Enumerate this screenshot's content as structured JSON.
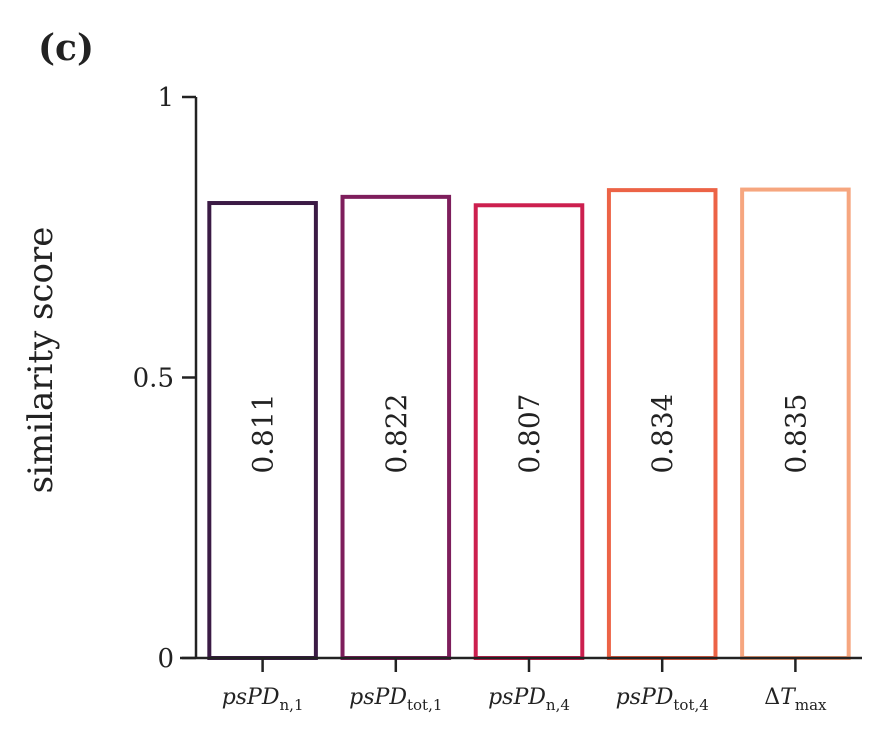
{
  "panel_label": "(c)",
  "chart_data": {
    "type": "bar",
    "title": "",
    "xlabel": "",
    "ylabel": "similarity score",
    "ylim": [
      0,
      1
    ],
    "yticks": [
      0,
      0.5,
      1
    ],
    "ytick_labels": [
      "0",
      "0.5",
      "1"
    ],
    "categories": [
      {
        "base": "psPD",
        "sub": "n,1"
      },
      {
        "base": "psPD",
        "sub": "tot,1"
      },
      {
        "base": "psPD",
        "sub": "n,4"
      },
      {
        "base": "psPD",
        "sub": "tot,4"
      },
      {
        "base": "ΔT",
        "sub": "max"
      }
    ],
    "values": [
      0.811,
      0.822,
      0.807,
      0.834,
      0.835
    ],
    "value_labels": [
      "0.811",
      "0.822",
      "0.807",
      "0.834",
      "0.835"
    ],
    "colors": [
      "#3b1b45",
      "#7e1e5c",
      "#cc1f4f",
      "#ec6346",
      "#f6a67f"
    ],
    "bar_style": "outline",
    "grid": false
  }
}
